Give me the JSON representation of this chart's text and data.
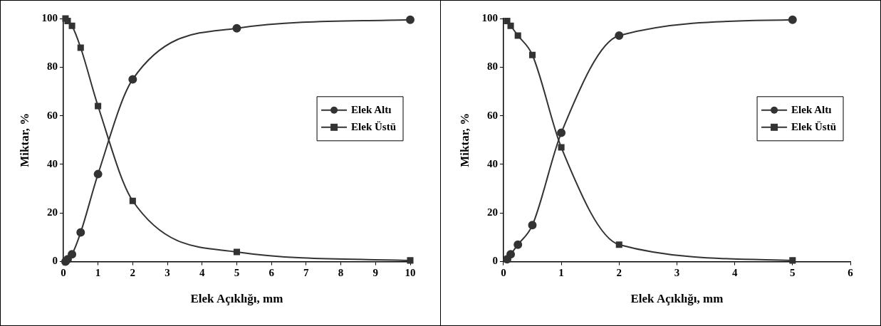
{
  "chart_data": [
    {
      "type": "line",
      "xlabel": "Elek Açıklığı, mm",
      "ylabel": "Miktar, %",
      "xlim": [
        0,
        10
      ],
      "xticks": [
        0,
        1,
        2,
        3,
        4,
        5,
        6,
        7,
        8,
        9,
        10
      ],
      "ylim": [
        0,
        100
      ],
      "yticks": [
        0,
        20,
        40,
        60,
        80,
        100
      ],
      "grid": false,
      "legend": "right",
      "series": [
        {
          "name": "Elek Altı",
          "color": "#333333",
          "marker": "circle",
          "x": [
            0.063,
            0.125,
            0.25,
            0.5,
            1,
            2,
            5,
            10
          ],
          "values": [
            0,
            1,
            3,
            12,
            36,
            75,
            96,
            99.5
          ]
        },
        {
          "name": "Elek Üstü",
          "color": "#333333",
          "marker": "square",
          "x": [
            0.063,
            0.125,
            0.25,
            0.5,
            1,
            2,
            5,
            10
          ],
          "values": [
            100,
            99,
            97,
            88,
            64,
            25,
            4,
            0.5
          ]
        }
      ]
    },
    {
      "type": "line",
      "xlabel": "Elek Açıklığı, mm",
      "ylabel": "Miktar, %",
      "xlim": [
        0,
        6
      ],
      "xticks": [
        0,
        1,
        2,
        3,
        4,
        5,
        6
      ],
      "ylim": [
        0,
        100
      ],
      "yticks": [
        0,
        20,
        40,
        60,
        80,
        100
      ],
      "grid": false,
      "legend": "right",
      "series": [
        {
          "name": "Elek Altı",
          "color": "#333333",
          "marker": "circle",
          "x": [
            0.063,
            0.125,
            0.25,
            0.5,
            1,
            2,
            5
          ],
          "values": [
            1,
            3,
            7,
            15,
            53,
            93,
            99.5
          ]
        },
        {
          "name": "Elek Üstü",
          "color": "#333333",
          "marker": "square",
          "x": [
            0.063,
            0.125,
            0.25,
            0.5,
            1,
            2,
            5
          ],
          "values": [
            99,
            97,
            93,
            85,
            47,
            7,
            0.5
          ]
        }
      ]
    }
  ]
}
